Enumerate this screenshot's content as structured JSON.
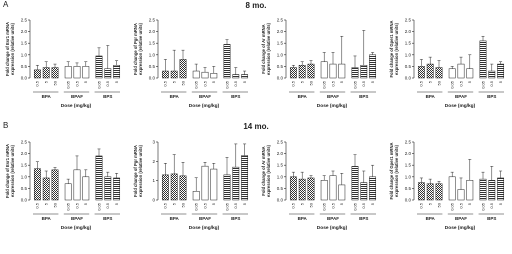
{
  "header": {
    "panel_a": "A",
    "title_a": "8 mo.",
    "panel_b": "B",
    "title_b": "14 mo."
  },
  "chart_data": [
    {
      "type": "bar",
      "ylabel": [
        "Fold change of Esr1 mRNA",
        "expression (relative units)"
      ],
      "xlabel": "Dose (mg/kg)",
      "ylim": [
        0,
        2.5
      ],
      "yticks": [
        {
          "value": 0,
          "label": "0.0"
        },
        {
          "value": 0.5,
          "label": "0.5"
        },
        {
          "value": 1,
          "label": "1.0"
        },
        {
          "value": 1.5,
          "label": "1.5"
        },
        {
          "value": 2,
          "label": "2.0"
        },
        {
          "value": 2.5,
          "label": "2.5"
        }
      ],
      "groups": [
        {
          "name": "BPA",
          "pattern": "checker",
          "doses": [
            "0.5",
            "5",
            "50"
          ],
          "values": [
            0.35,
            0.45,
            0.45
          ],
          "errors": [
            0.2,
            0.25,
            0.15
          ]
        },
        {
          "name": "BPAF",
          "pattern": "white",
          "doses": [
            "0.05",
            "0.5",
            "5"
          ],
          "values": [
            0.5,
            0.5,
            0.5
          ],
          "errors": [
            0.2,
            0.15,
            0.2
          ]
        },
        {
          "name": "BPS",
          "pattern": "stripes",
          "doses": [
            "0.05",
            "0.5",
            "5"
          ],
          "values": [
            0.95,
            0.4,
            0.55
          ],
          "errors": [
            0.35,
            1.0,
            0.2
          ]
        }
      ]
    },
    {
      "type": "bar",
      "ylabel": [
        "Fold change of Pgr mRNA",
        "expression (relative units)"
      ],
      "xlabel": "Dose (mg/kg)",
      "ylim": [
        0,
        2.5
      ],
      "yticks": [
        {
          "value": 0,
          "label": "0.0"
        },
        {
          "value": 0.5,
          "label": "0.5"
        },
        {
          "value": 1,
          "label": "1.0"
        },
        {
          "value": 1.5,
          "label": "1.5"
        },
        {
          "value": 2,
          "label": "2.0"
        },
        {
          "value": 2.5,
          "label": "2.5"
        }
      ],
      "groups": [
        {
          "name": "BPA",
          "pattern": "checker",
          "doses": [
            "0.5",
            "5",
            "50"
          ],
          "values": [
            0.3,
            0.3,
            0.8
          ],
          "errors": [
            0.5,
            0.9,
            0.4
          ]
        },
        {
          "name": "BPAF",
          "pattern": "white",
          "doses": [
            "0.05",
            "0.5",
            "5"
          ],
          "values": [
            0.3,
            0.25,
            0.2
          ],
          "errors": [
            0.3,
            0.2,
            0.3
          ]
        },
        {
          "name": "BPS",
          "pattern": "stripes",
          "doses": [
            "0.05",
            "0.5",
            "5"
          ],
          "values": [
            1.45,
            0.15,
            0.15
          ],
          "errors": [
            0.2,
            0.3,
            0.15
          ]
        }
      ]
    },
    {
      "type": "bar",
      "ylabel": [
        "Fold change of Ar mRNA",
        "expression (relative units)"
      ],
      "xlabel": "Dose (mg/kg)",
      "ylim": [
        0,
        2.5
      ],
      "yticks": [
        {
          "value": 0,
          "label": "0.0"
        },
        {
          "value": 0.5,
          "label": "0.5"
        },
        {
          "value": 1,
          "label": "1.0"
        },
        {
          "value": 1.5,
          "label": "1.5"
        },
        {
          "value": 2,
          "label": "2.0"
        },
        {
          "value": 2.5,
          "label": "2.5"
        }
      ],
      "groups": [
        {
          "name": "BPA",
          "pattern": "checker",
          "doses": [
            "0.5",
            "5",
            "50"
          ],
          "values": [
            0.45,
            0.55,
            0.6
          ],
          "errors": [
            0.1,
            0.15,
            0.15
          ]
        },
        {
          "name": "BPAF",
          "pattern": "white",
          "doses": [
            "0.05",
            "0.5",
            "5"
          ],
          "values": [
            0.7,
            0.6,
            0.6
          ],
          "errors": [
            0.4,
            0.5,
            1.2
          ]
        },
        {
          "name": "BPS",
          "pattern": "stripes",
          "doses": [
            "0.05",
            "0.5",
            "5"
          ],
          "values": [
            0.45,
            0.55,
            1.0
          ],
          "errors": [
            0.5,
            1.5,
            0.1
          ]
        }
      ]
    },
    {
      "type": "bar",
      "ylabel": [
        "Fold change of Gper1 mRNA",
        "expression (relative units)"
      ],
      "xlabel": "Dose (mg/kg)",
      "ylim": [
        0,
        2.5
      ],
      "yticks": [
        {
          "value": 0,
          "label": "0.0"
        },
        {
          "value": 0.5,
          "label": "0.5"
        },
        {
          "value": 1,
          "label": "1.0"
        },
        {
          "value": 1.5,
          "label": "1.5"
        },
        {
          "value": 2,
          "label": "2.0"
        },
        {
          "value": 2.5,
          "label": "2.5"
        }
      ],
      "groups": [
        {
          "name": "BPA",
          "pattern": "checker",
          "doses": [
            "0.5",
            "5",
            "50"
          ],
          "values": [
            0.5,
            0.6,
            0.45
          ],
          "errors": [
            0.3,
            0.3,
            0.3
          ]
        },
        {
          "name": "BPAF",
          "pattern": "white",
          "doses": [
            "0.05",
            "0.5",
            "5"
          ],
          "values": [
            0.4,
            0.6,
            0.4
          ],
          "errors": [
            0.1,
            0.3,
            0.6
          ]
        },
        {
          "name": "BPS",
          "pattern": "stripes",
          "doses": [
            "0.05",
            "0.5",
            "5"
          ],
          "values": [
            1.6,
            0.3,
            0.6
          ],
          "errors": [
            0.2,
            0.3,
            0.1
          ]
        }
      ]
    },
    {
      "type": "bar",
      "ylabel": [
        "Fold change of Esr1 mRNA",
        "expression (relative units)"
      ],
      "xlabel": "Dose (mg/kg)",
      "ylim": [
        0,
        2.5
      ],
      "yticks": [
        {
          "value": 0,
          "label": "0.0"
        },
        {
          "value": 0.5,
          "label": "0.5"
        },
        {
          "value": 1,
          "label": "1.0"
        },
        {
          "value": 1.5,
          "label": "1.5"
        },
        {
          "value": 2,
          "label": "2.0"
        },
        {
          "value": 2.5,
          "label": "2.5"
        }
      ],
      "groups": [
        {
          "name": "BPA",
          "pattern": "checker",
          "doses": [
            "0.5",
            "5",
            "50"
          ],
          "values": [
            1.35,
            0.95,
            1.3
          ],
          "errors": [
            0.3,
            0.3,
            0.1
          ]
        },
        {
          "name": "BPAF",
          "pattern": "white",
          "doses": [
            "0.05",
            "0.5",
            "5"
          ],
          "values": [
            0.7,
            1.3,
            1.0
          ],
          "errors": [
            0.2,
            0.6,
            0.3
          ]
        },
        {
          "name": "BPS",
          "pattern": "stripes",
          "doses": [
            "0.05",
            "0.5",
            "5"
          ],
          "values": [
            1.9,
            1.0,
            0.95
          ],
          "errors": [
            0.3,
            0.2,
            0.2
          ]
        }
      ]
    },
    {
      "type": "bar",
      "ylabel": [
        "Fold change of Pgr mRNA",
        "expression (relative units)"
      ],
      "xlabel": "Dose (mg/kg)",
      "ylim": [
        0,
        3
      ],
      "yticks": [
        0,
        1,
        2,
        3
      ],
      "groups": [
        {
          "name": "BPA",
          "pattern": "checker",
          "doses": [
            "0.5",
            "5",
            "50"
          ],
          "values": [
            1.3,
            1.35,
            1.25
          ],
          "errors": [
            0.6,
            1.0,
            0.7
          ]
        },
        {
          "name": "BPAF",
          "pattern": "white",
          "doses": [
            "0.05",
            "0.5",
            "5"
          ],
          "values": [
            0.45,
            1.75,
            1.6
          ],
          "errors": [
            0.7,
            0.2,
            0.3
          ]
        },
        {
          "name": "BPS",
          "pattern": "stripes",
          "doses": [
            "0.05",
            "0.5",
            "5"
          ],
          "values": [
            1.3,
            1.7,
            2.3
          ],
          "errors": [
            0.9,
            1.2,
            0.6
          ]
        }
      ]
    },
    {
      "type": "bar",
      "ylabel": [
        "Fold change of Ar mRNA",
        "expression (relative units)"
      ],
      "xlabel": "Dose (mg/kg)",
      "ylim": [
        0,
        2.5
      ],
      "yticks": [
        {
          "value": 0,
          "label": "0.0"
        },
        {
          "value": 0.5,
          "label": "0.5"
        },
        {
          "value": 1,
          "label": "1.0"
        },
        {
          "value": 1.5,
          "label": "1.5"
        },
        {
          "value": 2,
          "label": "2.0"
        },
        {
          "value": 2.5,
          "label": "2.5"
        }
      ],
      "groups": [
        {
          "name": "BPA",
          "pattern": "checker",
          "doses": [
            "0.5",
            "5",
            "50"
          ],
          "values": [
            1.0,
            0.9,
            0.95
          ],
          "errors": [
            0.2,
            0.3,
            0.1
          ]
        },
        {
          "name": "BPAF",
          "pattern": "white",
          "doses": [
            "0.05",
            "0.5",
            "5"
          ],
          "values": [
            0.85,
            1.05,
            0.65
          ],
          "errors": [
            0.2,
            0.2,
            0.5
          ]
        },
        {
          "name": "BPS",
          "pattern": "stripes",
          "doses": [
            "0.05",
            "0.5",
            "5"
          ],
          "values": [
            1.45,
            0.75,
            1.0
          ],
          "errors": [
            0.5,
            0.5,
            0.5
          ]
        }
      ]
    },
    {
      "type": "bar",
      "ylabel": [
        "Fold change of Gper1 mRNA",
        "expression (relative units)"
      ],
      "xlabel": "Dose (mg/kg)",
      "ylim": [
        0,
        2.5
      ],
      "yticks": [
        {
          "value": 0,
          "label": "0.0"
        },
        {
          "value": 0.5,
          "label": "0.5"
        },
        {
          "value": 1,
          "label": "1.0"
        },
        {
          "value": 1.5,
          "label": "1.5"
        },
        {
          "value": 2,
          "label": "2.0"
        },
        {
          "value": 2.5,
          "label": "2.5"
        }
      ],
      "groups": [
        {
          "name": "BPA",
          "pattern": "checker",
          "doses": [
            "0.5",
            "5",
            "50"
          ],
          "values": [
            0.75,
            0.7,
            0.7
          ],
          "errors": [
            0.2,
            0.2,
            0.1
          ]
        },
        {
          "name": "BPAF",
          "pattern": "white",
          "doses": [
            "0.05",
            "0.5",
            "5"
          ],
          "values": [
            1.0,
            0.45,
            0.85
          ],
          "errors": [
            0.2,
            0.5,
            0.9
          ]
        },
        {
          "name": "BPS",
          "pattern": "stripes",
          "doses": [
            "0.05",
            "0.5",
            "5"
          ],
          "values": [
            0.9,
            0.85,
            0.95
          ],
          "errors": [
            0.3,
            0.6,
            0.3
          ]
        }
      ]
    }
  ]
}
